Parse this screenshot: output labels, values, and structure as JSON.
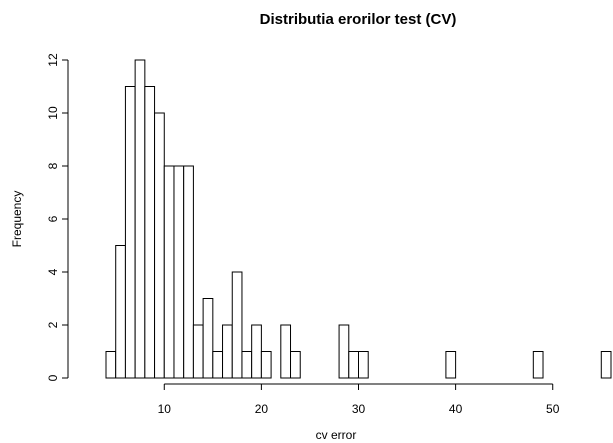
{
  "chart_data": {
    "type": "histogram",
    "title": "Distributia erorilor test (CV)",
    "xlabel": "cv error",
    "ylabel": "Frequency",
    "bins": [
      4,
      5,
      6,
      7,
      8,
      9,
      10,
      11,
      12,
      13,
      14,
      15,
      16,
      17,
      18,
      19,
      20,
      21,
      22,
      23,
      24,
      25,
      26,
      27,
      28,
      29,
      30,
      31,
      32,
      33,
      34,
      35,
      36,
      37,
      38,
      39,
      40,
      41,
      42,
      43,
      44,
      45,
      46,
      47,
      48,
      49,
      50,
      51,
      52,
      53,
      54,
      55,
      56
    ],
    "counts": [
      1,
      5,
      11,
      12,
      11,
      10,
      8,
      8,
      8,
      2,
      3,
      1,
      2,
      4,
      1,
      2,
      1,
      0,
      2,
      1,
      0,
      0,
      0,
      0,
      2,
      1,
      1,
      0,
      0,
      0,
      0,
      0,
      0,
      0,
      0,
      1,
      0,
      0,
      0,
      0,
      0,
      0,
      0,
      0,
      1,
      0,
      0,
      0,
      0,
      0,
      0,
      1
    ],
    "color": "#ffffff",
    "xlim": [
      4,
      56
    ],
    "ylim": [
      0,
      12
    ],
    "xticks": [
      10,
      20,
      30,
      40,
      50
    ],
    "yticks": [
      0,
      2,
      4,
      6,
      8,
      10,
      12
    ]
  }
}
